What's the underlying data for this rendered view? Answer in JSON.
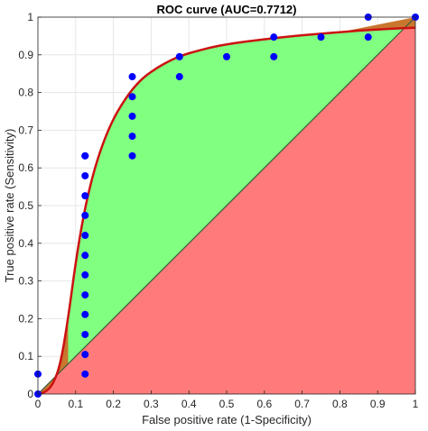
{
  "chart_data": {
    "type": "scatter",
    "title": "ROC curve (AUC=0.7712)",
    "xlabel": "False positive rate (1-Specificity)",
    "ylabel": "True positive rate (Sensitivity)",
    "xlim": [
      0,
      1
    ],
    "ylim": [
      0,
      1
    ],
    "xticks": [
      "0",
      "0.1",
      "0.2",
      "0.3",
      "0.4",
      "0.5",
      "0.6",
      "0.7",
      "0.8",
      "0.9",
      "1"
    ],
    "yticks": [
      "0",
      "0.1",
      "0.2",
      "0.3",
      "0.4",
      "0.5",
      "0.6",
      "0.7",
      "0.8",
      "0.9",
      "1"
    ],
    "grid": true,
    "points": {
      "x": [
        0,
        0,
        0.125,
        0.125,
        0.125,
        0.125,
        0.125,
        0.125,
        0.125,
        0.125,
        0.125,
        0.125,
        0.125,
        0.125,
        0.125,
        0.25,
        0.25,
        0.25,
        0.25,
        0.25,
        0.375,
        0.375,
        0.5,
        0.625,
        0.625,
        0.75,
        0.875,
        0.875,
        1
      ],
      "y": [
        0,
        0.053,
        0.053,
        0.105,
        0.158,
        0.211,
        0.263,
        0.316,
        0.368,
        0.421,
        0.474,
        0.526,
        0.579,
        0.632,
        0.632,
        0.632,
        0.684,
        0.737,
        0.789,
        0.842,
        0.842,
        0.895,
        0.895,
        0.895,
        0.947,
        0.947,
        0.947,
        1.0,
        1.0
      ]
    },
    "fitted_curve": {
      "x": [
        0,
        0.02,
        0.04,
        0.06,
        0.08,
        0.1,
        0.12,
        0.14,
        0.16,
        0.18,
        0.2,
        0.22,
        0.24,
        0.26,
        0.28,
        0.3,
        0.32,
        0.35,
        0.38,
        0.42,
        0.46,
        0.5,
        0.55,
        0.6,
        0.65,
        0.7,
        0.75,
        0.8,
        0.85,
        0.9,
        0.95,
        1.0
      ],
      "y": [
        0,
        0.005,
        0.025,
        0.08,
        0.2,
        0.35,
        0.47,
        0.56,
        0.63,
        0.685,
        0.73,
        0.765,
        0.795,
        0.82,
        0.84,
        0.855,
        0.868,
        0.885,
        0.898,
        0.91,
        0.92,
        0.928,
        0.935,
        0.941,
        0.947,
        0.952,
        0.956,
        0.96,
        0.964,
        0.967,
        0.97,
        0.972
      ]
    },
    "colors": {
      "points": "#0000ff",
      "curve": "#cc1111",
      "auc_fill": "#ff7b7b",
      "gain_fill": "#80ff80",
      "overlap_fill": "#c9762f",
      "diagonal": "#3a5a3a"
    }
  }
}
